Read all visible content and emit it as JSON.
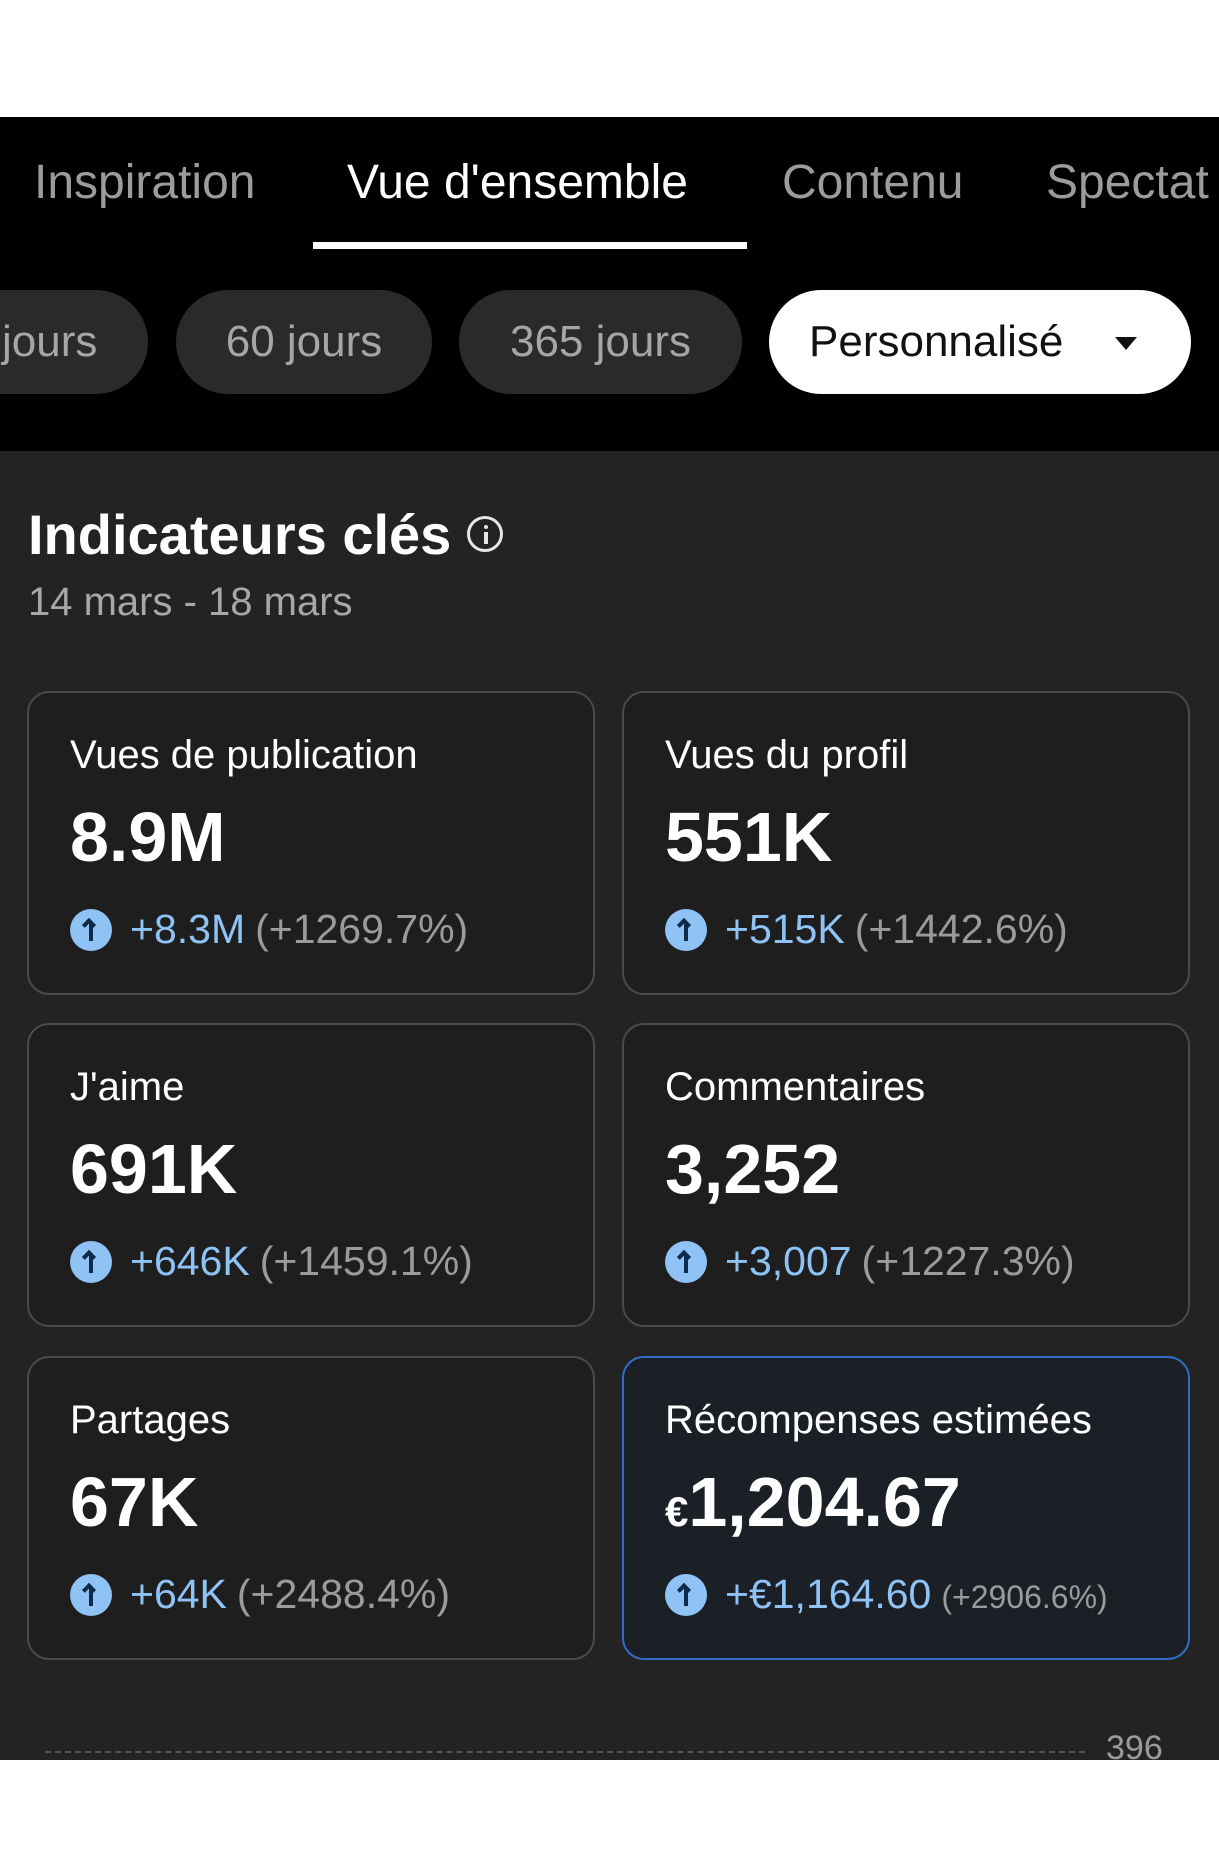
{
  "tabs": {
    "items": [
      {
        "label": "Inspiration"
      },
      {
        "label": "Vue d'ensemble"
      },
      {
        "label": "Contenu"
      },
      {
        "label": "Spectat"
      }
    ],
    "active_index": 1
  },
  "filters": {
    "items": [
      {
        "label": "jours"
      },
      {
        "label": "60 jours"
      },
      {
        "label": "365 jours"
      },
      {
        "label": "Personnalisé"
      }
    ],
    "selected_index": 3,
    "dropdown_icon": "caret-down-icon"
  },
  "key_metrics": {
    "title": "Indicateurs clés",
    "info_icon": "info-icon",
    "date_range": "14 mars - 18 mars",
    "cards": [
      {
        "label": "Vues de publication",
        "value": "8.9M",
        "delta": "+8.3M",
        "delta_pct": "(+1269.7%)"
      },
      {
        "label": "Vues du profil",
        "value": "551K",
        "delta": "+515K",
        "delta_pct": "(+1442.6%)"
      },
      {
        "label": "J'aime",
        "value": "691K",
        "delta": "+646K",
        "delta_pct": "(+1459.1%)"
      },
      {
        "label": "Commentaires",
        "value": "3,252",
        "delta": "+3,007",
        "delta_pct": "(+1227.3%)"
      },
      {
        "label": "Partages",
        "value": "67K",
        "delta": "+64K",
        "delta_pct": "(+2488.4%)"
      },
      {
        "label": "Récompenses estimées",
        "currency": "€",
        "value": "1,204.67",
        "delta": "+€1,164.60",
        "delta_pct": "(+2906.6%)"
      }
    ]
  },
  "chart_preview": {
    "axis_value": "396"
  },
  "colors": {
    "background": "#232323",
    "accent_blue": "#8fc2f5",
    "highlight_border": "#2f6ec9"
  }
}
